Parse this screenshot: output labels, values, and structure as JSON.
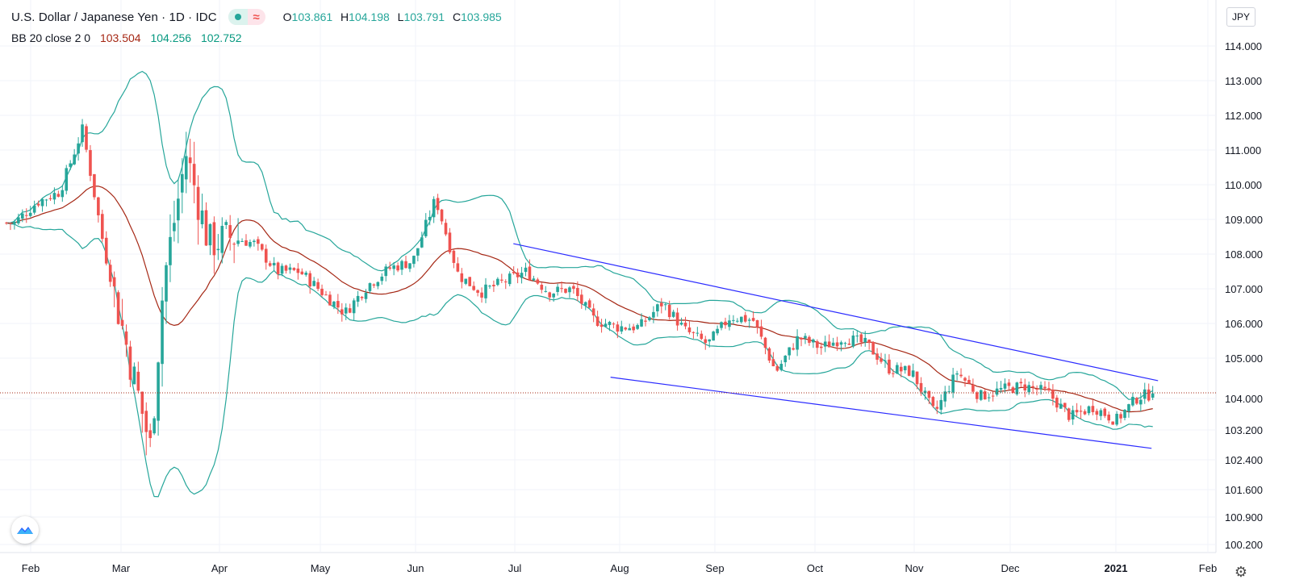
{
  "header": {
    "symbol_title": "U.S. Dollar / Japanese Yen · 1D · IDC",
    "open_label": "O",
    "open": "103.861",
    "high_label": "H",
    "high": "104.198",
    "low_label": "L",
    "low": "103.791",
    "close_label": "C",
    "close": "103.985"
  },
  "indicator": {
    "label": "BB 20 close 2 0",
    "basis": "103.504",
    "upper": "104.256",
    "lower": "102.752"
  },
  "currency_button": "JPY",
  "colors": {
    "up": "#26a69a",
    "down": "#ef5350",
    "basis": "#a52714",
    "bands": "#26a69a",
    "trendline": "#2b2bff",
    "last_price_line": "#a52714",
    "grid": "#f0f3fa"
  },
  "icons": {
    "logo": "tradingview-logo-icon",
    "settings": "gear-icon",
    "indicator_status": "dot-icon",
    "wave": "wave-icon"
  },
  "chart_data": {
    "type": "candlestick",
    "title": "U.S. Dollar / Japanese Yen · 1D · IDC",
    "ylim": [
      99.8,
      114.6
    ],
    "y_ticks": [
      "114.000",
      "113.000",
      "112.000",
      "111.000",
      "110.000",
      "109.000",
      "108.000",
      "107.000",
      "106.000",
      "105.000",
      "104.000",
      "103.200",
      "102.400",
      "101.600",
      "100.900",
      "100.200"
    ],
    "x_ticks": [
      "Feb",
      "Mar",
      "Apr",
      "May",
      "Jun",
      "Jul",
      "Aug",
      "Sep",
      "Oct",
      "Nov",
      "Dec",
      "2021",
      "Feb"
    ],
    "last_price": 104.0,
    "grid": true,
    "candles_close_path": [
      {
        "date": "2020-01-27",
        "close": 108.9
      },
      {
        "date": "2020-02-03",
        "close": 109.5
      },
      {
        "date": "2020-02-10",
        "close": 109.8
      },
      {
        "date": "2020-02-17",
        "close": 111.6
      },
      {
        "date": "2020-02-24",
        "close": 108.0
      },
      {
        "date": "2020-03-02",
        "close": 105.2
      },
      {
        "date": "2020-03-09",
        "close": 102.4
      },
      {
        "date": "2020-03-13",
        "close": 107.2
      },
      {
        "date": "2020-03-20",
        "close": 110.9
      },
      {
        "date": "2020-03-27",
        "close": 108.3
      },
      {
        "date": "2020-04-03",
        "close": 108.5
      },
      {
        "date": "2020-04-10",
        "close": 108.3
      },
      {
        "date": "2020-04-17",
        "close": 107.5
      },
      {
        "date": "2020-04-24",
        "close": 107.5
      },
      {
        "date": "2020-05-01",
        "close": 106.9
      },
      {
        "date": "2020-05-08",
        "close": 106.3
      },
      {
        "date": "2020-05-15",
        "close": 107.1
      },
      {
        "date": "2020-05-22",
        "close": 107.6
      },
      {
        "date": "2020-05-29",
        "close": 107.8
      },
      {
        "date": "2020-06-05",
        "close": 109.6
      },
      {
        "date": "2020-06-12",
        "close": 107.4
      },
      {
        "date": "2020-06-19",
        "close": 106.9
      },
      {
        "date": "2020-06-26",
        "close": 107.2
      },
      {
        "date": "2020-07-03",
        "close": 107.5
      },
      {
        "date": "2020-07-10",
        "close": 106.9
      },
      {
        "date": "2020-07-17",
        "close": 107.0
      },
      {
        "date": "2020-07-24",
        "close": 106.1
      },
      {
        "date": "2020-07-31",
        "close": 105.9
      },
      {
        "date": "2020-08-07",
        "close": 105.9
      },
      {
        "date": "2020-08-14",
        "close": 106.6
      },
      {
        "date": "2020-08-21",
        "close": 105.8
      },
      {
        "date": "2020-08-28",
        "close": 105.4
      },
      {
        "date": "2020-09-04",
        "close": 106.2
      },
      {
        "date": "2020-09-11",
        "close": 106.1
      },
      {
        "date": "2020-09-18",
        "close": 104.6
      },
      {
        "date": "2020-09-25",
        "close": 105.6
      },
      {
        "date": "2020-10-02",
        "close": 105.3
      },
      {
        "date": "2020-10-09",
        "close": 105.6
      },
      {
        "date": "2020-10-16",
        "close": 105.4
      },
      {
        "date": "2020-10-23",
        "close": 104.7
      },
      {
        "date": "2020-10-30",
        "close": 104.6
      },
      {
        "date": "2020-11-06",
        "close": 103.4
      },
      {
        "date": "2020-11-13",
        "close": 104.6
      },
      {
        "date": "2020-11-20",
        "close": 103.9
      },
      {
        "date": "2020-11-27",
        "close": 104.1
      },
      {
        "date": "2020-12-04",
        "close": 104.2
      },
      {
        "date": "2020-12-11",
        "close": 104.0
      },
      {
        "date": "2020-12-18",
        "close": 103.3
      },
      {
        "date": "2020-12-25",
        "close": 103.6
      },
      {
        "date": "2021-01-01",
        "close": 103.2
      },
      {
        "date": "2021-01-08",
        "close": 103.9
      },
      {
        "date": "2021-01-14",
        "close": 103.985
      }
    ]
  }
}
